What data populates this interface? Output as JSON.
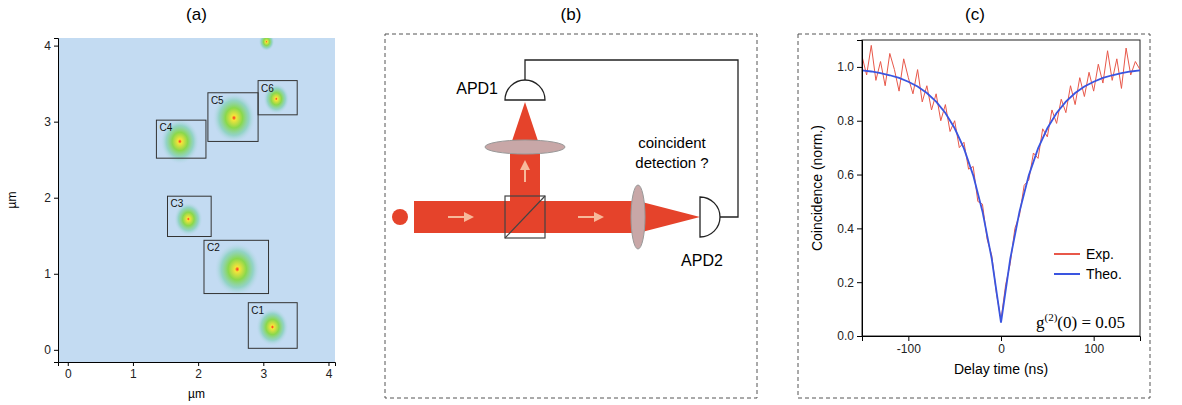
{
  "chart_data": [
    {
      "type": "image",
      "title": "(a)",
      "xlabel": "µm",
      "ylabel": "µm",
      "xlim": [
        -0.15,
        4.1
      ],
      "ylim": [
        -0.16,
        4.1
      ],
      "xticks": [
        0,
        1,
        2,
        3,
        4
      ],
      "yticks": [
        0,
        1,
        2,
        3,
        4
      ],
      "spots": {
        "x": [
          3.14,
          2.6,
          1.85,
          1.72,
          2.55,
          3.2,
          3.05
        ],
        "y": [
          0.3,
          1.06,
          1.72,
          2.74,
          3.05,
          3.3,
          4.05
        ],
        "radius": [
          0.25,
          0.35,
          0.22,
          0.3,
          0.33,
          0.2,
          0.12
        ]
      },
      "boxes": [
        {
          "label": "C1",
          "x": [
            2.77,
            3.52
          ],
          "y": [
            0.02,
            0.62
          ]
        },
        {
          "label": "C2",
          "x": [
            2.09,
            3.08
          ],
          "y": [
            0.74,
            1.44
          ]
        },
        {
          "label": "C3",
          "x": [
            1.53,
            2.2
          ],
          "y": [
            1.49,
            2.02
          ]
        },
        {
          "label": "C4",
          "x": [
            1.36,
            2.12
          ],
          "y": [
            2.52,
            3.02
          ]
        },
        {
          "label": "C5",
          "x": [
            2.15,
            2.92
          ],
          "y": [
            2.74,
            3.38
          ]
        },
        {
          "label": "C6",
          "x": [
            2.92,
            3.52
          ],
          "y": [
            3.09,
            3.54
          ]
        }
      ]
    },
    {
      "type": "line",
      "title": "(c)",
      "xlabel": "Delay time (ns)",
      "ylabel": "Coincidence (norm.)",
      "xlim": [
        -150,
        150
      ],
      "ylim": [
        0,
        1.1
      ],
      "xticks": [
        -100,
        0,
        100
      ],
      "yticks": [
        {
          "value": 0,
          "label": "0.0"
        },
        {
          "value": 0.2,
          "label": "0.2"
        },
        {
          "value": 0.4,
          "label": "0.4"
        },
        {
          "value": 0.6,
          "label": "0.6"
        },
        {
          "value": 0.8,
          "label": "0.8"
        },
        {
          "value": 1,
          "label": "1.0"
        }
      ],
      "legend": "lower right",
      "annotation": {
        "base": "g",
        "sup": "(2)",
        "rest": "(0) = 0.05"
      },
      "series": [
        {
          "name": "Exp.",
          "color": "#e8584a",
          "x": [
            -150,
            -145,
            -140,
            -135,
            -130,
            -125,
            -120,
            -115,
            -110,
            -105,
            -100,
            -95,
            -90,
            -85,
            -80,
            -75,
            -70,
            -65,
            -60,
            -55,
            -50,
            -45,
            -40,
            -35,
            -30,
            -25,
            -20,
            -15,
            -10,
            -5,
            0,
            5,
            10,
            15,
            20,
            25,
            30,
            35,
            40,
            45,
            50,
            55,
            60,
            65,
            70,
            75,
            80,
            85,
            90,
            95,
            100,
            105,
            110,
            115,
            120,
            125,
            130,
            135,
            140,
            145,
            150
          ],
          "values": [
            1.04,
            0.97,
            1.08,
            0.95,
            1.02,
            0.93,
            1.05,
            0.99,
            0.91,
            1.03,
            0.96,
            0.9,
            0.99,
            0.87,
            0.93,
            0.84,
            0.9,
            0.8,
            0.86,
            0.76,
            0.8,
            0.7,
            0.72,
            0.62,
            0.63,
            0.5,
            0.49,
            0.36,
            0.3,
            0.16,
            0.06,
            0.19,
            0.27,
            0.4,
            0.45,
            0.56,
            0.58,
            0.68,
            0.66,
            0.77,
            0.74,
            0.84,
            0.79,
            0.88,
            0.83,
            0.93,
            0.86,
            0.96,
            0.89,
            0.98,
            0.91,
            1.01,
            0.94,
            1.06,
            0.95,
            1.03,
            0.92,
            1.07,
            0.97,
            1.02,
            0.99
          ]
        },
        {
          "name": "Theo.",
          "color": "#3a55e0",
          "x": [
            -150,
            -140,
            -130,
            -120,
            -110,
            -100,
            -90,
            -80,
            -70,
            -60,
            -50,
            -40,
            -30,
            -20,
            -10,
            0,
            10,
            20,
            30,
            40,
            50,
            60,
            70,
            80,
            90,
            100,
            110,
            120,
            130,
            140,
            150
          ],
          "values": [
            0.987,
            0.983,
            0.977,
            0.969,
            0.959,
            0.945,
            0.927,
            0.903,
            0.871,
            0.829,
            0.772,
            0.697,
            0.597,
            0.463,
            0.287,
            0.05,
            0.287,
            0.463,
            0.597,
            0.697,
            0.772,
            0.829,
            0.871,
            0.903,
            0.927,
            0.945,
            0.959,
            0.969,
            0.977,
            0.983,
            0.987
          ]
        }
      ]
    }
  ],
  "diagram": {
    "title": "(b)",
    "detectors": [
      "APD1",
      "APD2"
    ],
    "annotation": [
      "coincident",
      "detection ?"
    ]
  }
}
